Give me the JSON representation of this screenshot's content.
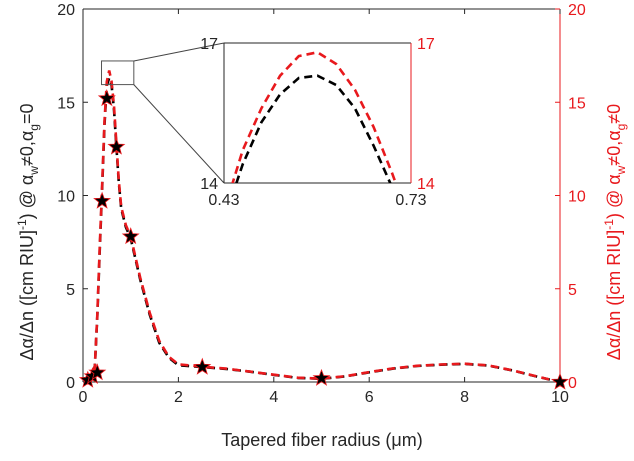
{
  "chart_data": {
    "type": "line",
    "title": "",
    "xlabel": "Tapered fiber radius (μm)",
    "ylabel_left": {
      "base": "Δα/Δn ([cm RIU]",
      "sup1": "-1",
      "mid": ") @ α",
      "sub1": "w",
      "mid2": "≠0,α",
      "sub2": "g",
      "end": "=0"
    },
    "ylabel_right": {
      "base": "Δα/Δn ([cm RIU]",
      "sup1": "-1",
      "mid": ") @ α",
      "sub1": "w",
      "mid2": "≠0,α",
      "sub2": "g",
      "end": "≠0"
    },
    "xlim": [
      0,
      10
    ],
    "ylim": [
      0,
      20
    ],
    "ylim_right": [
      0,
      20
    ],
    "xticks": [
      "0",
      "2",
      "4",
      "6",
      "8",
      "10"
    ],
    "yticks": [
      "0",
      "5",
      "10",
      "15",
      "20"
    ],
    "yticks_right": [
      "0",
      "5",
      "10",
      "15",
      "20"
    ],
    "colors": {
      "left": "#000000",
      "right": "#e8191d"
    },
    "series": [
      {
        "style": "black dashed curve with pentagram markers",
        "axis": "left",
        "x": [
          0.1,
          0.15,
          0.2,
          0.25,
          0.3,
          0.35,
          0.4,
          0.45,
          0.5,
          0.55,
          0.6,
          0.65,
          0.7,
          0.75,
          0.8,
          0.9,
          1.0,
          1.2,
          1.4,
          1.6,
          1.8,
          2.0,
          2.5,
          3.0,
          3.5,
          4.0,
          4.5,
          5.0,
          5.5,
          6.0,
          6.5,
          7.0,
          7.5,
          8.0,
          8.5,
          9.0,
          9.5,
          10.0
        ],
        "y": [
          0.0,
          0.05,
          0.2,
          0.9,
          3.5,
          7.0,
          10.3,
          13.8,
          15.9,
          16.3,
          15.9,
          14.6,
          12.6,
          10.7,
          9.3,
          8.3,
          7.7,
          5.5,
          3.6,
          2.1,
          1.3,
          0.9,
          0.8,
          0.7,
          0.55,
          0.38,
          0.22,
          0.17,
          0.3,
          0.52,
          0.72,
          0.86,
          0.93,
          0.97,
          0.88,
          0.62,
          0.3,
          0.0
        ]
      },
      {
        "style": "red dashed curve with pentagram markers",
        "axis": "right",
        "x": [
          0.1,
          0.15,
          0.2,
          0.25,
          0.3,
          0.35,
          0.4,
          0.45,
          0.5,
          0.55,
          0.6,
          0.65,
          0.7,
          0.75,
          0.8,
          0.9,
          1.0,
          1.2,
          1.4,
          1.6,
          1.8,
          2.0,
          2.5,
          3.0,
          3.5,
          4.0,
          4.5,
          5.0,
          5.5,
          6.0,
          6.5,
          7.0,
          7.5,
          8.0,
          8.5,
          9.0,
          9.5,
          10.0
        ],
        "y": [
          0.0,
          0.05,
          0.2,
          0.9,
          3.6,
          7.2,
          10.5,
          14.0,
          16.1,
          16.7,
          16.1,
          14.8,
          12.8,
          10.8,
          9.4,
          8.4,
          7.8,
          5.6,
          3.7,
          2.2,
          1.35,
          0.95,
          0.82,
          0.72,
          0.56,
          0.39,
          0.23,
          0.18,
          0.31,
          0.53,
          0.73,
          0.87,
          0.94,
          0.98,
          0.89,
          0.63,
          0.31,
          0.0
        ]
      }
    ],
    "markers": {
      "x": [
        0.1,
        0.2,
        0.3,
        0.4,
        0.5,
        0.7,
        1.0,
        2.5,
        5.0,
        10.0
      ],
      "y": [
        0.1,
        0.3,
        0.5,
        9.7,
        15.2,
        12.6,
        7.8,
        0.8,
        0.2,
        0.0
      ]
    },
    "inset": {
      "xlim": [
        0.43,
        0.73
      ],
      "ylim": [
        14,
        17
      ],
      "xticks": [
        "0.43",
        "0.73"
      ],
      "yticks_left": [
        "14",
        "17"
      ],
      "yticks_right": [
        "14",
        "17"
      ],
      "series": [
        {
          "style": "black dashed",
          "x": [
            0.43,
            0.46,
            0.49,
            0.52,
            0.55,
            0.58,
            0.61,
            0.64,
            0.67,
            0.7,
            0.73
          ],
          "y": [
            13.2,
            14.4,
            15.3,
            15.9,
            16.25,
            16.3,
            16.1,
            15.6,
            14.8,
            13.9,
            12.8
          ]
        },
        {
          "style": "red dashed",
          "x": [
            0.43,
            0.46,
            0.49,
            0.52,
            0.55,
            0.58,
            0.61,
            0.64,
            0.67,
            0.7,
            0.73
          ],
          "y": [
            13.4,
            14.7,
            15.6,
            16.3,
            16.72,
            16.8,
            16.55,
            16.0,
            15.2,
            14.2,
            13.1
          ]
        }
      ]
    },
    "zoom_box": {
      "x": [
        0.43,
        0.73
      ],
      "y": [
        16.0,
        17.0
      ]
    }
  }
}
